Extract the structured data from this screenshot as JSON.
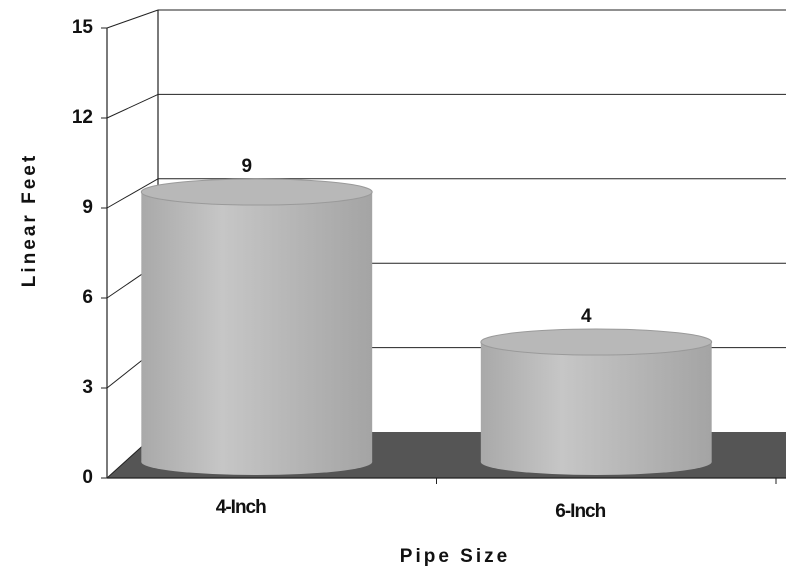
{
  "chart_data": {
    "type": "bar",
    "categories": [
      "4-Inch",
      "6-Inch"
    ],
    "values": [
      9,
      4
    ],
    "color": "#b8b8b8",
    "ylim": [
      0,
      15
    ],
    "yticks": [
      0,
      3,
      6,
      9,
      12,
      15
    ],
    "grid": true,
    "y_label": "Linear Feet",
    "x_label": "Pipe Size"
  }
}
